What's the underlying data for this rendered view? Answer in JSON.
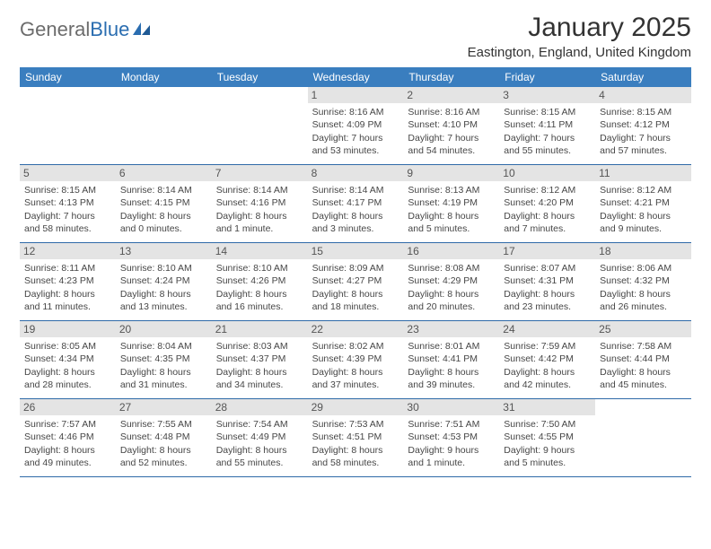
{
  "logo": {
    "text1": "General",
    "text2": "Blue"
  },
  "title": "January 2025",
  "location": "Eastington, England, United Kingdom",
  "colors": {
    "header_bg": "#3a7ebf",
    "header_text": "#ffffff",
    "daynum_bg": "#e4e4e4",
    "border": "#2f6aa8",
    "logo_gray": "#6c6c6c",
    "logo_blue": "#2a6db0"
  },
  "weekdays": [
    "Sunday",
    "Monday",
    "Tuesday",
    "Wednesday",
    "Thursday",
    "Friday",
    "Saturday"
  ],
  "weeks": [
    [
      {
        "n": "",
        "t": ""
      },
      {
        "n": "",
        "t": ""
      },
      {
        "n": "",
        "t": ""
      },
      {
        "n": "1",
        "t": "Sunrise: 8:16 AM\nSunset: 4:09 PM\nDaylight: 7 hours and 53 minutes."
      },
      {
        "n": "2",
        "t": "Sunrise: 8:16 AM\nSunset: 4:10 PM\nDaylight: 7 hours and 54 minutes."
      },
      {
        "n": "3",
        "t": "Sunrise: 8:15 AM\nSunset: 4:11 PM\nDaylight: 7 hours and 55 minutes."
      },
      {
        "n": "4",
        "t": "Sunrise: 8:15 AM\nSunset: 4:12 PM\nDaylight: 7 hours and 57 minutes."
      }
    ],
    [
      {
        "n": "5",
        "t": "Sunrise: 8:15 AM\nSunset: 4:13 PM\nDaylight: 7 hours and 58 minutes."
      },
      {
        "n": "6",
        "t": "Sunrise: 8:14 AM\nSunset: 4:15 PM\nDaylight: 8 hours and 0 minutes."
      },
      {
        "n": "7",
        "t": "Sunrise: 8:14 AM\nSunset: 4:16 PM\nDaylight: 8 hours and 1 minute."
      },
      {
        "n": "8",
        "t": "Sunrise: 8:14 AM\nSunset: 4:17 PM\nDaylight: 8 hours and 3 minutes."
      },
      {
        "n": "9",
        "t": "Sunrise: 8:13 AM\nSunset: 4:19 PM\nDaylight: 8 hours and 5 minutes."
      },
      {
        "n": "10",
        "t": "Sunrise: 8:12 AM\nSunset: 4:20 PM\nDaylight: 8 hours and 7 minutes."
      },
      {
        "n": "11",
        "t": "Sunrise: 8:12 AM\nSunset: 4:21 PM\nDaylight: 8 hours and 9 minutes."
      }
    ],
    [
      {
        "n": "12",
        "t": "Sunrise: 8:11 AM\nSunset: 4:23 PM\nDaylight: 8 hours and 11 minutes."
      },
      {
        "n": "13",
        "t": "Sunrise: 8:10 AM\nSunset: 4:24 PM\nDaylight: 8 hours and 13 minutes."
      },
      {
        "n": "14",
        "t": "Sunrise: 8:10 AM\nSunset: 4:26 PM\nDaylight: 8 hours and 16 minutes."
      },
      {
        "n": "15",
        "t": "Sunrise: 8:09 AM\nSunset: 4:27 PM\nDaylight: 8 hours and 18 minutes."
      },
      {
        "n": "16",
        "t": "Sunrise: 8:08 AM\nSunset: 4:29 PM\nDaylight: 8 hours and 20 minutes."
      },
      {
        "n": "17",
        "t": "Sunrise: 8:07 AM\nSunset: 4:31 PM\nDaylight: 8 hours and 23 minutes."
      },
      {
        "n": "18",
        "t": "Sunrise: 8:06 AM\nSunset: 4:32 PM\nDaylight: 8 hours and 26 minutes."
      }
    ],
    [
      {
        "n": "19",
        "t": "Sunrise: 8:05 AM\nSunset: 4:34 PM\nDaylight: 8 hours and 28 minutes."
      },
      {
        "n": "20",
        "t": "Sunrise: 8:04 AM\nSunset: 4:35 PM\nDaylight: 8 hours and 31 minutes."
      },
      {
        "n": "21",
        "t": "Sunrise: 8:03 AM\nSunset: 4:37 PM\nDaylight: 8 hours and 34 minutes."
      },
      {
        "n": "22",
        "t": "Sunrise: 8:02 AM\nSunset: 4:39 PM\nDaylight: 8 hours and 37 minutes."
      },
      {
        "n": "23",
        "t": "Sunrise: 8:01 AM\nSunset: 4:41 PM\nDaylight: 8 hours and 39 minutes."
      },
      {
        "n": "24",
        "t": "Sunrise: 7:59 AM\nSunset: 4:42 PM\nDaylight: 8 hours and 42 minutes."
      },
      {
        "n": "25",
        "t": "Sunrise: 7:58 AM\nSunset: 4:44 PM\nDaylight: 8 hours and 45 minutes."
      }
    ],
    [
      {
        "n": "26",
        "t": "Sunrise: 7:57 AM\nSunset: 4:46 PM\nDaylight: 8 hours and 49 minutes."
      },
      {
        "n": "27",
        "t": "Sunrise: 7:55 AM\nSunset: 4:48 PM\nDaylight: 8 hours and 52 minutes."
      },
      {
        "n": "28",
        "t": "Sunrise: 7:54 AM\nSunset: 4:49 PM\nDaylight: 8 hours and 55 minutes."
      },
      {
        "n": "29",
        "t": "Sunrise: 7:53 AM\nSunset: 4:51 PM\nDaylight: 8 hours and 58 minutes."
      },
      {
        "n": "30",
        "t": "Sunrise: 7:51 AM\nSunset: 4:53 PM\nDaylight: 9 hours and 1 minute."
      },
      {
        "n": "31",
        "t": "Sunrise: 7:50 AM\nSunset: 4:55 PM\nDaylight: 9 hours and 5 minutes."
      },
      {
        "n": "",
        "t": ""
      }
    ]
  ]
}
